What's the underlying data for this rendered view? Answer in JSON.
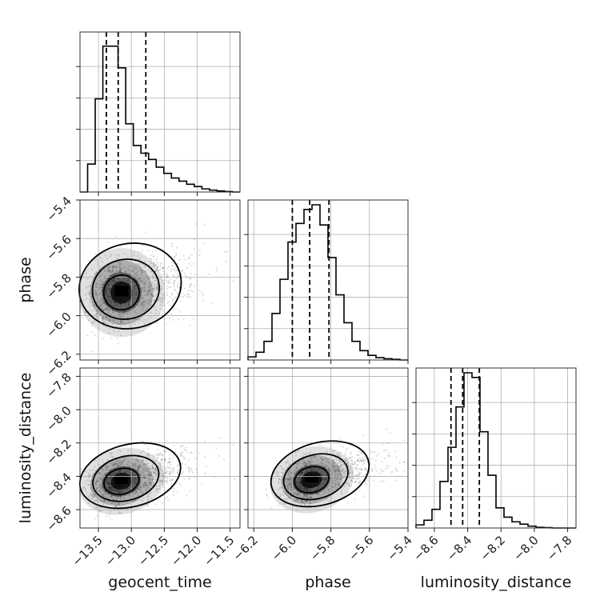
{
  "chart_data": {
    "type": "corner",
    "parameters": [
      "geocent_time",
      "phase",
      "luminosity_distance"
    ],
    "ranges": {
      "geocent_time": [
        -13.78,
        -11.35
      ],
      "phase": [
        -6.23,
        -5.4
      ],
      "luminosity_distance": [
        -8.71,
        -7.75
      ]
    },
    "ticks": {
      "geocent_time": [
        -13.5,
        -13.0,
        -12.5,
        -12.0,
        -11.5
      ],
      "phase": [
        -6.2,
        -6.0,
        -5.8,
        -5.6,
        -5.4
      ],
      "luminosity_distance": [
        -8.6,
        -8.4,
        -8.2,
        -8.0,
        -7.8
      ]
    },
    "tick_labels": {
      "geocent_time": [
        "−13.5",
        "−13.0",
        "−12.5",
        "−12.0",
        "−11.5"
      ],
      "phase": [
        "−6.2",
        "−6.0",
        "−5.8",
        "−5.6",
        "−5.4"
      ],
      "luminosity_distance": [
        "−8.6",
        "−8.4",
        "−8.2",
        "−8.0",
        "−7.8"
      ]
    },
    "quantiles": {
      "geocent_time": [
        -13.38,
        -13.2,
        -12.78
      ],
      "phase": [
        -6.0,
        -5.91,
        -5.81
      ],
      "luminosity_distance": [
        -8.5,
        -8.43,
        -8.33
      ]
    },
    "histograms": [
      {
        "param": "geocent_time",
        "range": [
          -13.78,
          -11.35
        ],
        "counts": [
          0.0,
          0.18,
          0.6,
          0.94,
          0.94,
          0.8,
          0.44,
          0.3,
          0.25,
          0.21,
          0.16,
          0.12,
          0.09,
          0.07,
          0.05,
          0.035,
          0.02,
          0.012,
          0.007,
          0.003,
          0.0
        ]
      },
      {
        "param": "phase",
        "range": [
          -6.23,
          -5.4
        ],
        "counts": [
          0.02,
          0.05,
          0.12,
          0.3,
          0.52,
          0.76,
          0.88,
          0.97,
          1.0,
          0.87,
          0.66,
          0.42,
          0.24,
          0.12,
          0.06,
          0.03,
          0.015,
          0.008,
          0.004,
          0.0
        ]
      },
      {
        "param": "luminosity_distance",
        "range": [
          -8.71,
          -7.75
        ],
        "counts": [
          0.02,
          0.05,
          0.12,
          0.3,
          0.52,
          0.78,
          1.0,
          0.97,
          0.62,
          0.34,
          0.13,
          0.07,
          0.04,
          0.025,
          0.012,
          0.004,
          0.002,
          0.0,
          0.0,
          0.0
        ]
      }
    ],
    "scatter_pairs": [
      {
        "x": "geocent_time",
        "y": "phase",
        "mean": [
          -13.15,
          -5.88
        ],
        "sd": [
          0.3,
          0.1
        ],
        "corr": 0.45
      },
      {
        "x": "geocent_time",
        "y": "luminosity_distance",
        "mean": [
          -13.15,
          -8.43
        ],
        "sd": [
          0.3,
          0.085
        ],
        "corr": 0.55
      },
      {
        "x": "phase",
        "y": "luminosity_distance",
        "mean": [
          -5.9,
          -8.42
        ],
        "sd": [
          0.1,
          0.085
        ],
        "corr": 0.6
      }
    ],
    "grid": true
  }
}
